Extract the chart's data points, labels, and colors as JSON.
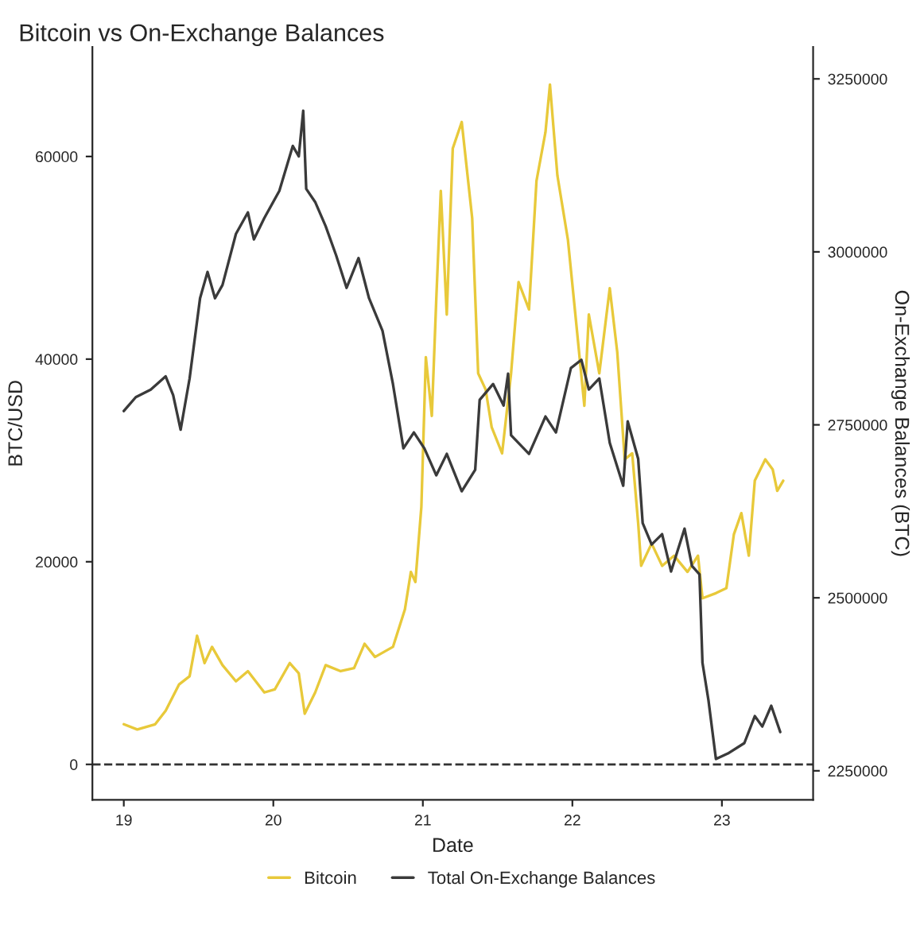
{
  "chart_data": {
    "type": "line",
    "title": "Bitcoin vs On-Exchange Balances",
    "xlabel": "Date",
    "ylabel": "BTC/USD",
    "y2label": "On-Exchange Balances (BTC)",
    "xlim": [
      18.79,
      23.61
    ],
    "xticks": [
      19,
      20,
      21,
      22,
      23
    ],
    "ylim": [
      -3500,
      70800
    ],
    "yticks": [
      0,
      20000,
      40000,
      60000
    ],
    "y2lim": [
      2208000,
      3296000
    ],
    "y2ticks": [
      2250000,
      2500000,
      2750000,
      3000000,
      3250000
    ],
    "grid": false,
    "legend": "bottom",
    "line_style": "solid",
    "marker": "none",
    "ref_lines": [
      {
        "axis": "y",
        "value": 0,
        "color": "#333333",
        "line_style": "dashed"
      }
    ],
    "series": [
      {
        "name": "Bitcoin",
        "color": "#e8c93a",
        "x": [
          19.0,
          19.09,
          19.21,
          19.28,
          19.37,
          19.44,
          19.49,
          19.54,
          19.59,
          19.66,
          19.75,
          19.83,
          19.94,
          20.01,
          20.11,
          20.17,
          20.21,
          20.28,
          20.35,
          20.45,
          20.54,
          20.61,
          20.68,
          20.8,
          20.88,
          20.92,
          20.95,
          20.99,
          21.02,
          21.06,
          21.09,
          21.12,
          21.16,
          21.2,
          21.26,
          21.33,
          21.37,
          21.42,
          21.46,
          21.53,
          21.59,
          21.64,
          21.71,
          21.76,
          21.82,
          21.85,
          21.9,
          21.97,
          22.02,
          22.08,
          22.11,
          22.18,
          22.25,
          22.3,
          22.35,
          22.4,
          22.44,
          22.46,
          22.53,
          22.6,
          22.68,
          22.77,
          22.84,
          22.87,
          22.96,
          23.03,
          23.08,
          23.13,
          23.18,
          23.22,
          23.29,
          23.34,
          23.37,
          23.41
        ],
        "values": [
          3960,
          3440,
          3960,
          5300,
          7900,
          8700,
          12700,
          10000,
          11600,
          9800,
          8200,
          9200,
          7100,
          7400,
          10000,
          9000,
          5000,
          7100,
          9800,
          9200,
          9500,
          11900,
          10600,
          11600,
          15300,
          19000,
          18000,
          25400,
          40200,
          34400,
          46000,
          56600,
          44400,
          60800,
          63400,
          53900,
          38600,
          37000,
          33300,
          30700,
          38600,
          47600,
          44900,
          57600,
          62400,
          67100,
          58100,
          51800,
          44400,
          35400,
          44400,
          38600,
          47000,
          40700,
          30100,
          30700,
          23800,
          19600,
          21800,
          19600,
          20600,
          19000,
          20600,
          16400,
          16900,
          17400,
          22700,
          24800,
          20600,
          28000,
          30100,
          29100,
          27000,
          28000
        ]
      },
      {
        "name": "Total On-Exchange Balances",
        "color": "#3a3a3a",
        "axis": "y2",
        "x": [
          19.0,
          19.08,
          19.18,
          19.28,
          19.33,
          19.38,
          19.44,
          19.51,
          19.56,
          19.61,
          19.66,
          19.75,
          19.83,
          19.87,
          19.94,
          20.04,
          20.13,
          20.17,
          20.2,
          20.22,
          20.28,
          20.35,
          20.42,
          20.49,
          20.57,
          20.64,
          20.73,
          20.8,
          20.87,
          20.94,
          21.01,
          21.09,
          21.16,
          21.26,
          21.35,
          21.38,
          21.47,
          21.54,
          21.57,
          21.59,
          21.71,
          21.82,
          21.89,
          21.99,
          22.06,
          22.11,
          22.18,
          22.25,
          22.34,
          22.37,
          22.44,
          22.47,
          22.53,
          22.6,
          22.66,
          22.75,
          22.8,
          22.85,
          22.87,
          22.91,
          22.96,
          23.04,
          23.15,
          23.22,
          23.27,
          23.33,
          23.39
        ],
        "values": [
          2770000,
          2790000,
          2801000,
          2820000,
          2793000,
          2743000,
          2817000,
          2933000,
          2971000,
          2933000,
          2952000,
          3026000,
          3057000,
          3018000,
          3049000,
          3088000,
          3153000,
          3138000,
          3204000,
          3091000,
          3072000,
          3037000,
          2995000,
          2948000,
          2991000,
          2933000,
          2886000,
          2809000,
          2716000,
          2739000,
          2716000,
          2677000,
          2708000,
          2654000,
          2685000,
          2786000,
          2809000,
          2778000,
          2824000,
          2735000,
          2708000,
          2762000,
          2739000,
          2832000,
          2844000,
          2801000,
          2817000,
          2724000,
          2662000,
          2755000,
          2701000,
          2608000,
          2577000,
          2592000,
          2538000,
          2600000,
          2546000,
          2534000,
          2406000,
          2352000,
          2267000,
          2275000,
          2290000,
          2329000,
          2314000,
          2344000,
          2306000
        ]
      }
    ]
  }
}
